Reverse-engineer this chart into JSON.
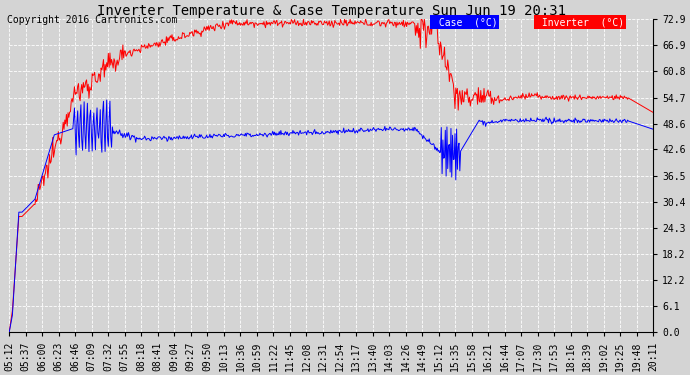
{
  "title": "Inverter Temperature & Case Temperature Sun Jun 19 20:31",
  "copyright": "Copyright 2016 Cartronics.com",
  "ylabel_right_ticks": [
    0.0,
    6.1,
    12.2,
    18.2,
    24.3,
    30.4,
    36.5,
    42.6,
    48.6,
    54.7,
    60.8,
    66.9,
    72.9
  ],
  "ylim": [
    0.0,
    72.9
  ],
  "background_color": "#d4d4d4",
  "plot_bg_color": "#d4d4d4",
  "grid_color": "#ffffff",
  "case_color": "#0000ff",
  "inverter_color": "#ff0000",
  "legend_case_bg": "#0000ff",
  "legend_inverter_bg": "#ff0000",
  "title_fontsize": 10,
  "copyright_fontsize": 7,
  "tick_fontsize": 7,
  "x_tick_labels": [
    "05:12",
    "05:37",
    "06:00",
    "06:23",
    "06:46",
    "07:09",
    "07:32",
    "07:55",
    "08:18",
    "08:41",
    "09:04",
    "09:27",
    "09:50",
    "10:13",
    "10:36",
    "10:59",
    "11:22",
    "11:45",
    "12:08",
    "12:31",
    "12:54",
    "13:17",
    "13:40",
    "14:03",
    "14:26",
    "14:49",
    "15:12",
    "15:35",
    "15:58",
    "16:21",
    "16:44",
    "17:07",
    "17:30",
    "17:53",
    "18:16",
    "18:39",
    "19:02",
    "19:25",
    "19:48",
    "20:11"
  ],
  "n_points": 800
}
